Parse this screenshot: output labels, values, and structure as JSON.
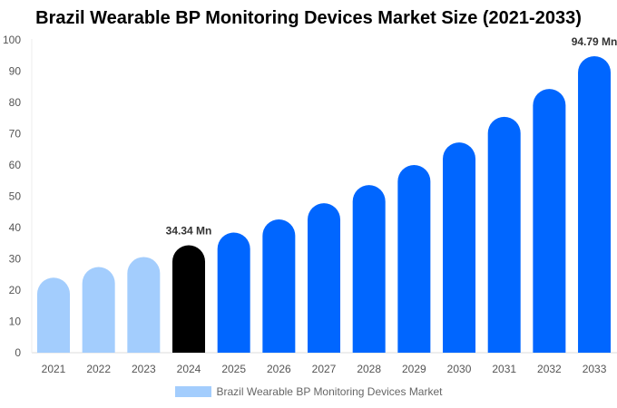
{
  "chart_data": {
    "type": "bar",
    "title": "Brazil Wearable BP Monitoring Devices Market Size (2021-2033)",
    "categories": [
      "2021",
      "2022",
      "2023",
      "2024",
      "2025",
      "2026",
      "2027",
      "2028",
      "2029",
      "2030",
      "2031",
      "2032",
      "2033"
    ],
    "series": [
      {
        "name": "Brazil Wearable BP Monitoring Devices Market",
        "values": [
          24.0,
          27.4,
          30.6,
          34.34,
          38.4,
          42.6,
          47.8,
          53.6,
          60.0,
          67.2,
          75.4,
          84.3,
          94.79
        ]
      }
    ],
    "data_labels": {
      "3": "34.34 Mn",
      "12": "94.79 Mn"
    },
    "ylim": [
      0,
      100
    ],
    "yticks": [
      0,
      10,
      20,
      30,
      40,
      50,
      60,
      70,
      80,
      90,
      100
    ],
    "grid": false,
    "legend_position": "bottom",
    "colors": {
      "historical": "#a3cdfd",
      "base_year": "#000000",
      "forecast": "#0066ff"
    }
  }
}
